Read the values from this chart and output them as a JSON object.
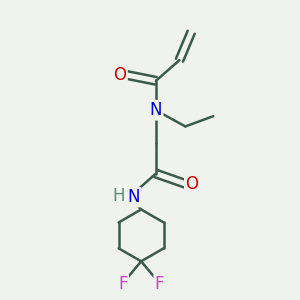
{
  "background_color": "#f0f2ee",
  "bond_color": "#3a5a4a",
  "bond_width": 1.8,
  "atom_colors": {
    "O": "#dd0000",
    "N": "#0000cc",
    "NH_H": "#5a8a7a",
    "NH_N": "#0000cc",
    "F": "#cc44cc"
  },
  "font_size": 12
}
